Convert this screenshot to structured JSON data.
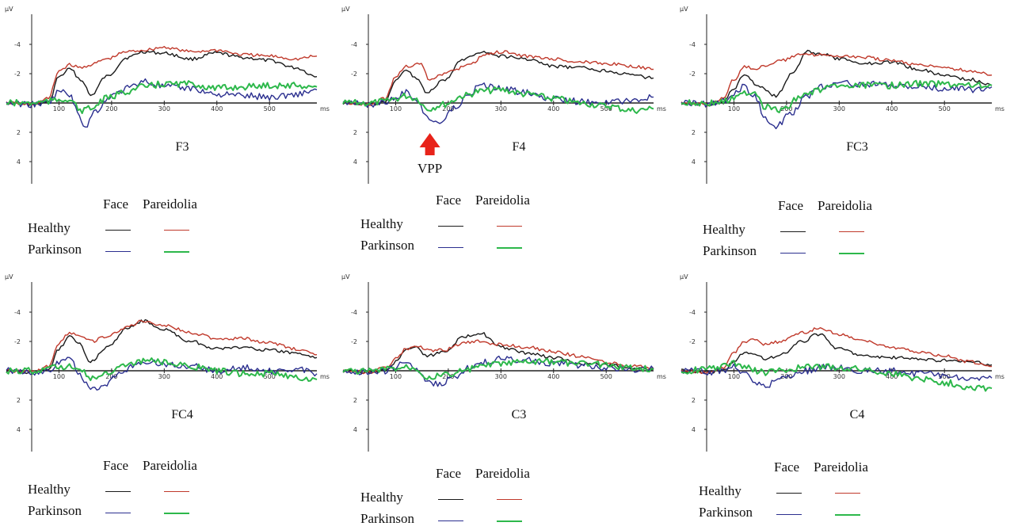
{
  "legend": {
    "col_face": "Face",
    "col_pareidolia": "Pareidolia",
    "row_healthy": "Healthy",
    "row_parkinson": "Parkinson"
  },
  "colors": {
    "healthy_face": "#1a1a1a",
    "healthy_pareidolia": "#c0392b",
    "parkinson_face": "#2b2f8f",
    "parkinson_pareidolia": "#2db84b"
  },
  "annotation": {
    "text": "VPP",
    "panel": "F4",
    "arrow_color": "#e8231a"
  },
  "axis_text": {
    "y_unit": "µV",
    "x_unit": "ms",
    "x_ticks": [
      "100",
      "200",
      "300",
      "400",
      "500"
    ],
    "y_ticks": [
      "-4",
      "-2",
      "2",
      "4"
    ]
  },
  "chart_data": [
    {
      "type": "line",
      "electrode": "F3",
      "xlim": [
        0,
        590
      ],
      "ylim": [
        5,
        -5
      ],
      "x_ticks": [
        100,
        200,
        300,
        400,
        500
      ],
      "y_ticks": [
        -4,
        -2,
        2,
        4
      ],
      "series": [
        {
          "name": "Healthy Face",
          "x": [
            0,
            50,
            80,
            100,
            120,
            145,
            160,
            190,
            230,
            260,
            300,
            350,
            400,
            450,
            500,
            550,
            590
          ],
          "y": [
            0,
            0.1,
            0,
            -1.8,
            -2.3,
            -1.5,
            -0.5,
            -1.8,
            -3.1,
            -3.5,
            -3.4,
            -3.0,
            -3.4,
            -3.1,
            -2.9,
            -2.4,
            -1.8
          ]
        },
        {
          "name": "Healthy Pareidolia",
          "x": [
            0,
            50,
            80,
            100,
            120,
            140,
            160,
            190,
            230,
            260,
            300,
            350,
            400,
            450,
            500,
            550,
            590
          ],
          "y": [
            0,
            0.1,
            -0.3,
            -2.2,
            -2.6,
            -2.4,
            -2.6,
            -3.0,
            -3.5,
            -3.6,
            -3.8,
            -3.5,
            -3.6,
            -3.3,
            -3.2,
            -3.0,
            -3.2
          ]
        },
        {
          "name": "Parkinson Face",
          "x": [
            0,
            50,
            80,
            100,
            120,
            135,
            150,
            170,
            200,
            230,
            260,
            300,
            350,
            400,
            450,
            500,
            550,
            590
          ],
          "y": [
            0,
            0.1,
            0,
            -0.8,
            -0.6,
            0.6,
            1.6,
            0.5,
            -0.5,
            -1.0,
            -1.5,
            -1.1,
            -1.0,
            -0.6,
            -0.5,
            -0.4,
            -0.6,
            -0.9
          ]
        },
        {
          "name": "Parkinson Pareidolia",
          "x": [
            0,
            50,
            80,
            100,
            120,
            140,
            160,
            190,
            230,
            260,
            300,
            350,
            400,
            450,
            500,
            550,
            590
          ],
          "y": [
            0,
            0,
            -0.1,
            -0.2,
            -0.3,
            0.5,
            0.4,
            -0.3,
            -0.8,
            -1.1,
            -1.3,
            -1.3,
            -1.0,
            -1.1,
            -1.2,
            -1.2,
            -1.1
          ]
        }
      ]
    },
    {
      "type": "line",
      "electrode": "F4",
      "xlim": [
        0,
        590
      ],
      "ylim": [
        5,
        -5
      ],
      "x_ticks": [
        100,
        200,
        300,
        400,
        500
      ],
      "y_ticks": [
        -4,
        -2,
        2,
        4
      ],
      "series": [
        {
          "name": "Healthy Face",
          "x": [
            0,
            50,
            80,
            100,
            120,
            140,
            160,
            190,
            230,
            260,
            300,
            350,
            400,
            450,
            500,
            550,
            590
          ],
          "y": [
            0,
            0.1,
            0,
            -1.6,
            -2.2,
            -1.7,
            -0.7,
            -1.5,
            -3.0,
            -3.5,
            -3.2,
            -3.0,
            -2.5,
            -2.4,
            -2.2,
            -1.9,
            -1.7
          ]
        },
        {
          "name": "Healthy Pareidolia",
          "x": [
            0,
            50,
            80,
            100,
            120,
            145,
            165,
            200,
            240,
            270,
            300,
            350,
            400,
            450,
            500,
            550,
            590
          ],
          "y": [
            0,
            0.1,
            -0.3,
            -1.8,
            -2.5,
            -2.7,
            -1.6,
            -2.1,
            -2.6,
            -3.3,
            -3.5,
            -3.2,
            -3.0,
            -2.8,
            -2.7,
            -2.5,
            -2.3
          ]
        },
        {
          "name": "Parkinson Face",
          "x": [
            0,
            50,
            80,
            100,
            120,
            140,
            160,
            180,
            210,
            240,
            260,
            300,
            350,
            400,
            450,
            500,
            550,
            590
          ],
          "y": [
            0,
            0.1,
            0,
            -0.4,
            -0.7,
            -0.3,
            1.0,
            1.4,
            0.4,
            -0.5,
            -1.2,
            -1.0,
            -0.7,
            -0.3,
            -0.1,
            0,
            -0.2,
            -0.4
          ]
        },
        {
          "name": "Parkinson Pareidolia",
          "x": [
            0,
            50,
            80,
            100,
            120,
            140,
            160,
            190,
            230,
            260,
            300,
            350,
            400,
            450,
            500,
            550,
            590
          ],
          "y": [
            0,
            0,
            -0.1,
            -0.3,
            -0.5,
            -0.3,
            0.4,
            0.1,
            -0.5,
            -0.8,
            -0.9,
            -0.6,
            -0.3,
            0,
            0.2,
            0.5,
            0.4
          ]
        }
      ]
    },
    {
      "type": "line",
      "electrode": "FC3",
      "xlim": [
        0,
        590
      ],
      "ylim": [
        5,
        -5
      ],
      "x_ticks": [
        100,
        200,
        300,
        400,
        500
      ],
      "y_ticks": [
        -4,
        -2,
        2,
        4
      ],
      "series": [
        {
          "name": "Healthy Face",
          "x": [
            0,
            50,
            80,
            100,
            120,
            150,
            180,
            210,
            240,
            270,
            300,
            350,
            400,
            450,
            500,
            550,
            590
          ],
          "y": [
            0,
            0.1,
            0,
            -1.0,
            -1.9,
            -1.1,
            -0.5,
            -2.0,
            -3.5,
            -3.3,
            -3.0,
            -2.7,
            -2.8,
            -2.3,
            -1.9,
            -1.6,
            -1.2
          ]
        },
        {
          "name": "Healthy Pareidolia",
          "x": [
            0,
            50,
            80,
            100,
            120,
            140,
            160,
            190,
            230,
            260,
            300,
            350,
            400,
            450,
            500,
            550,
            590
          ],
          "y": [
            0,
            0.1,
            -0.3,
            -1.6,
            -2.5,
            -2.3,
            -2.6,
            -2.9,
            -3.3,
            -3.3,
            -3.2,
            -3.1,
            -2.9,
            -2.6,
            -2.4,
            -2.2,
            -1.9
          ]
        },
        {
          "name": "Parkinson Face",
          "x": [
            0,
            50,
            80,
            100,
            120,
            140,
            160,
            180,
            210,
            240,
            270,
            300,
            350,
            400,
            450,
            500,
            550,
            590
          ],
          "y": [
            0,
            0.1,
            -0.1,
            -0.6,
            -1.1,
            -0.4,
            1.0,
            1.6,
            0.7,
            -0.5,
            -1.1,
            -1.4,
            -1.3,
            -1.2,
            -1.1,
            -1.0,
            -0.9,
            -1.1
          ]
        },
        {
          "name": "Parkinson Pareidolia",
          "x": [
            0,
            50,
            80,
            100,
            120,
            140,
            160,
            190,
            230,
            260,
            300,
            350,
            400,
            450,
            500,
            550,
            590
          ],
          "y": [
            0,
            0,
            -0.1,
            -0.3,
            -0.6,
            -0.8,
            0.3,
            0.5,
            -0.5,
            -0.9,
            -1.1,
            -1.2,
            -1.2,
            -1.3,
            -1.3,
            -1.2,
            -1.2
          ]
        }
      ]
    },
    {
      "type": "line",
      "electrode": "FC4",
      "xlim": [
        0,
        590
      ],
      "ylim": [
        5,
        -5
      ],
      "x_ticks": [
        100,
        200,
        300,
        400,
        500
      ],
      "y_ticks": [
        -4,
        -2,
        2,
        4
      ],
      "series": [
        {
          "name": "Healthy Face",
          "x": [
            0,
            50,
            80,
            100,
            120,
            140,
            160,
            190,
            230,
            260,
            300,
            350,
            400,
            450,
            500,
            550,
            590
          ],
          "y": [
            0,
            0.1,
            0,
            -1.5,
            -2.4,
            -1.8,
            -0.6,
            -1.6,
            -2.9,
            -3.4,
            -2.8,
            -2.0,
            -1.5,
            -1.6,
            -1.4,
            -1.2,
            -0.9
          ]
        },
        {
          "name": "Healthy Pareidolia",
          "x": [
            0,
            50,
            80,
            100,
            120,
            140,
            160,
            190,
            230,
            260,
            300,
            350,
            400,
            450,
            500,
            550,
            590
          ],
          "y": [
            0,
            0.1,
            -0.3,
            -1.9,
            -2.6,
            -2.4,
            -2.0,
            -2.3,
            -3.0,
            -3.4,
            -3.1,
            -2.6,
            -2.2,
            -2.2,
            -1.9,
            -1.5,
            -1.1
          ]
        },
        {
          "name": "Parkinson Face",
          "x": [
            0,
            50,
            80,
            100,
            120,
            140,
            160,
            180,
            210,
            240,
            270,
            300,
            350,
            400,
            450,
            500,
            550,
            590
          ],
          "y": [
            0,
            0.1,
            0,
            -0.6,
            -0.8,
            0.3,
            1.3,
            1.1,
            0.3,
            -0.3,
            -0.7,
            -0.5,
            -0.3,
            0,
            -0.2,
            0,
            -0.1,
            0.2
          ]
        },
        {
          "name": "Parkinson Pareidolia",
          "x": [
            0,
            50,
            80,
            100,
            120,
            140,
            160,
            190,
            230,
            260,
            300,
            350,
            400,
            450,
            500,
            550,
            590
          ],
          "y": [
            0,
            0,
            -0.1,
            -0.3,
            -0.3,
            -0.2,
            0.5,
            0.2,
            -0.4,
            -0.7,
            -0.6,
            -0.3,
            0,
            0.2,
            0.2,
            0.4,
            0.6
          ]
        }
      ]
    },
    {
      "type": "line",
      "electrode": "C3",
      "xlim": [
        0,
        590
      ],
      "ylim": [
        5,
        -5
      ],
      "x_ticks": [
        100,
        200,
        300,
        400,
        500
      ],
      "y_ticks": [
        -4,
        -2,
        2,
        4
      ],
      "series": [
        {
          "name": "Healthy Face",
          "x": [
            0,
            50,
            80,
            100,
            120,
            140,
            160,
            190,
            230,
            260,
            300,
            350,
            400,
            450,
            500,
            550,
            590
          ],
          "y": [
            0,
            0.1,
            0,
            -0.6,
            -1.5,
            -1.6,
            -1.0,
            -1.3,
            -2.3,
            -2.6,
            -1.6,
            -1.2,
            -0.9,
            -0.5,
            -0.4,
            -0.2,
            -0.1
          ]
        },
        {
          "name": "Healthy Pareidolia",
          "x": [
            0,
            50,
            80,
            100,
            120,
            140,
            160,
            190,
            230,
            260,
            300,
            350,
            400,
            450,
            500,
            550,
            590
          ],
          "y": [
            0,
            0.1,
            -0.2,
            -0.8,
            -1.5,
            -1.7,
            -1.4,
            -1.4,
            -1.9,
            -2.0,
            -1.8,
            -1.6,
            -1.3,
            -1.0,
            -0.6,
            -0.3,
            -0.2
          ]
        },
        {
          "name": "Parkinson Face",
          "x": [
            0,
            50,
            80,
            100,
            120,
            140,
            160,
            180,
            210,
            240,
            270,
            300,
            350,
            400,
            450,
            500,
            550,
            590
          ],
          "y": [
            0,
            0.1,
            0,
            -0.3,
            -0.5,
            -0.1,
            0.7,
            0.9,
            0.5,
            -0.2,
            -0.6,
            -0.8,
            -0.7,
            -0.5,
            -0.4,
            -0.2,
            -0.1,
            -0.1
          ]
        },
        {
          "name": "Parkinson Pareidolia",
          "x": [
            0,
            50,
            80,
            100,
            120,
            140,
            160,
            190,
            230,
            260,
            300,
            350,
            400,
            450,
            500,
            550,
            590
          ],
          "y": [
            0,
            0,
            -0.1,
            -0.2,
            -0.3,
            -0.2,
            0.4,
            0.3,
            0,
            -0.3,
            -0.5,
            -0.6,
            -0.6,
            -0.5,
            -0.4,
            -0.2,
            -0.1
          ]
        }
      ]
    },
    {
      "type": "line",
      "electrode": "C4",
      "xlim": [
        0,
        590
      ],
      "ylim": [
        5,
        -5
      ],
      "x_ticks": [
        100,
        200,
        300,
        400,
        500
      ],
      "y_ticks": [
        -4,
        -2,
        2,
        4
      ],
      "series": [
        {
          "name": "Healthy Face",
          "x": [
            0,
            50,
            80,
            100,
            120,
            140,
            160,
            190,
            230,
            260,
            300,
            350,
            400,
            450,
            500,
            550,
            590
          ],
          "y": [
            0,
            0.1,
            0,
            -0.6,
            -1.3,
            -1.1,
            -0.8,
            -1.1,
            -2.0,
            -2.5,
            -1.5,
            -1.0,
            -0.9,
            -0.8,
            -0.7,
            -0.6,
            -0.4
          ]
        },
        {
          "name": "Healthy Pareidolia",
          "x": [
            0,
            50,
            80,
            100,
            120,
            140,
            160,
            190,
            230,
            260,
            300,
            350,
            400,
            450,
            500,
            550,
            590
          ],
          "y": [
            0,
            0.1,
            -0.2,
            -1.2,
            -2.0,
            -2.2,
            -1.8,
            -2.0,
            -2.6,
            -2.9,
            -2.5,
            -2.0,
            -1.6,
            -1.3,
            -1.0,
            -0.6,
            -0.3
          ]
        },
        {
          "name": "Parkinson Face",
          "x": [
            0,
            50,
            80,
            100,
            120,
            140,
            160,
            180,
            210,
            240,
            270,
            300,
            350,
            400,
            450,
            500,
            550,
            590
          ],
          "y": [
            0,
            0.1,
            0,
            -0.3,
            0.1,
            0.8,
            1.1,
            0.7,
            0.3,
            0,
            -0.3,
            -0.2,
            0,
            0,
            0.2,
            0.3,
            0.5,
            0.5
          ]
        },
        {
          "name": "Parkinson Pareidolia",
          "x": [
            0,
            50,
            80,
            100,
            120,
            140,
            160,
            190,
            230,
            260,
            300,
            350,
            400,
            450,
            500,
            550,
            590
          ],
          "y": [
            0,
            -0.1,
            -0.3,
            -0.5,
            -0.3,
            0,
            0.1,
            0,
            -0.2,
            -0.3,
            -0.2,
            -0.1,
            0.2,
            0.5,
            0.8,
            1.1,
            1.2
          ]
        }
      ]
    }
  ]
}
